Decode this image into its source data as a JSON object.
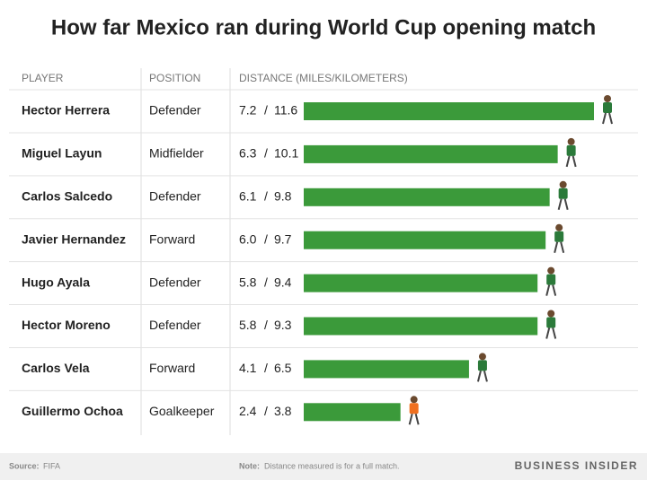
{
  "chart_data": {
    "type": "bar",
    "title": "How far Mexico ran during World Cup opening match",
    "columns": [
      "PLAYER",
      "POSITION",
      "DISTANCE (MILES/KILOMETERS)"
    ],
    "categories": [
      "Hector Herrera",
      "Miguel Layun",
      "Carlos Salcedo",
      "Javier Hernandez",
      "Hugo Ayala",
      "Hector Moreno",
      "Carlos Vela",
      "Guillermo Ochoa"
    ],
    "positions": [
      "Defender",
      "Midfielder",
      "Defender",
      "Forward",
      "Defender",
      "Defender",
      "Forward",
      "Goalkeeper"
    ],
    "values": [
      7.2,
      6.3,
      6.1,
      6.0,
      5.8,
      5.8,
      4.1,
      2.4
    ],
    "value_labels": [
      "7.2",
      "6.3",
      "6.1",
      "6.0",
      "5.8",
      "5.8",
      "4.1",
      "2.4"
    ],
    "km_values": [
      11.6,
      10.1,
      9.8,
      9.7,
      9.4,
      9.3,
      6.5,
      3.8
    ],
    "separator": "/",
    "color": "#3b9a3a",
    "footer": {
      "source_label": "Source:",
      "source": "FIFA",
      "note_label": "Note:",
      "note": "Distance measured is for a full match.",
      "brand": "BUSINESS INSIDER"
    }
  }
}
